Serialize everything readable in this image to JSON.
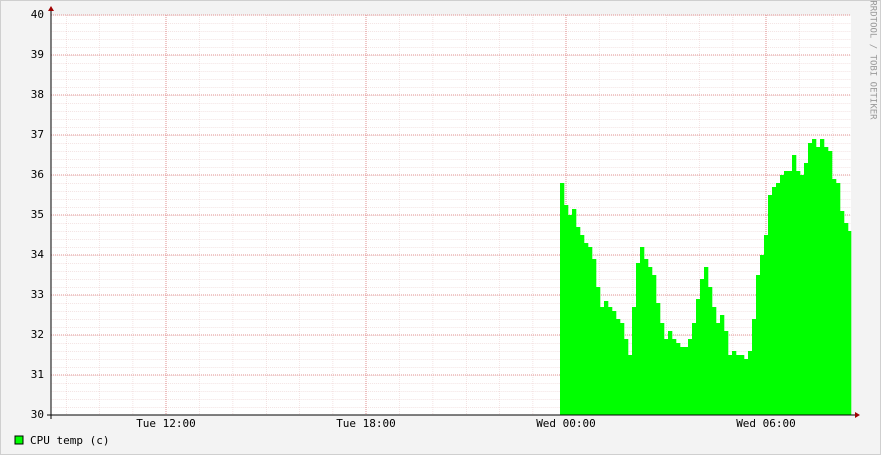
{
  "chart_data": {
    "type": "area",
    "watermark": "RRDTOOL / TOBI OETIKER",
    "series": [
      {
        "name": "CPU temp (c)",
        "color": "#00ff00",
        "values": [
          35.8,
          35.25,
          35.0,
          35.15,
          34.7,
          34.5,
          34.3,
          34.2,
          33.9,
          33.2,
          32.7,
          32.85,
          32.7,
          32.6,
          32.4,
          32.3,
          31.9,
          31.5,
          32.7,
          33.8,
          34.2,
          33.9,
          33.7,
          33.5,
          32.8,
          32.3,
          31.9,
          32.1,
          31.9,
          31.8,
          31.7,
          31.7,
          31.9,
          32.3,
          32.9,
          33.4,
          33.7,
          33.2,
          32.7,
          32.3,
          32.5,
          32.1,
          31.5,
          31.6,
          31.5,
          31.5,
          31.4,
          31.6,
          32.4,
          33.5,
          34.0,
          34.5,
          35.5,
          35.7,
          35.8,
          36.0,
          36.1,
          36.1,
          36.5,
          36.1,
          36.0,
          36.3,
          36.8,
          36.9,
          36.7,
          36.9,
          36.7,
          36.6,
          35.9,
          35.8,
          35.1,
          34.8,
          34.6
        ]
      }
    ],
    "x": [
      23.82,
      23.94,
      24.06,
      24.18,
      24.3,
      24.42,
      24.54,
      24.66,
      24.78,
      24.9,
      25.02,
      25.14,
      25.26,
      25.38,
      25.5,
      25.62,
      25.74,
      25.86,
      25.98,
      26.1,
      26.22,
      26.34,
      26.46,
      26.58,
      26.7,
      26.82,
      26.94,
      27.06,
      27.18,
      27.3,
      27.42,
      27.54,
      27.66,
      27.78,
      27.9,
      28.02,
      28.14,
      28.26,
      28.38,
      28.5,
      28.62,
      28.74,
      28.86,
      28.98,
      29.1,
      29.22,
      29.34,
      29.46,
      29.58,
      29.7,
      29.82,
      29.94,
      30.06,
      30.18,
      30.3,
      30.42,
      30.54,
      30.66,
      30.78,
      30.9,
      31.02,
      31.14,
      31.26,
      31.38,
      31.5,
      31.62,
      31.74,
      31.86,
      31.98,
      32.1,
      32.22,
      32.34,
      32.46
    ],
    "xlim": [
      8.55,
      32.55
    ],
    "xticks": [
      {
        "value": 12,
        "label": "Tue 12:00"
      },
      {
        "value": 18,
        "label": "Tue 18:00"
      },
      {
        "value": 24,
        "label": "Wed 00:00"
      },
      {
        "value": 30,
        "label": "Wed 06:00"
      }
    ],
    "ylim": [
      30,
      40
    ],
    "yticks": [
      30,
      31,
      32,
      33,
      34,
      35,
      36,
      37,
      38,
      39,
      40
    ],
    "grid": true
  }
}
